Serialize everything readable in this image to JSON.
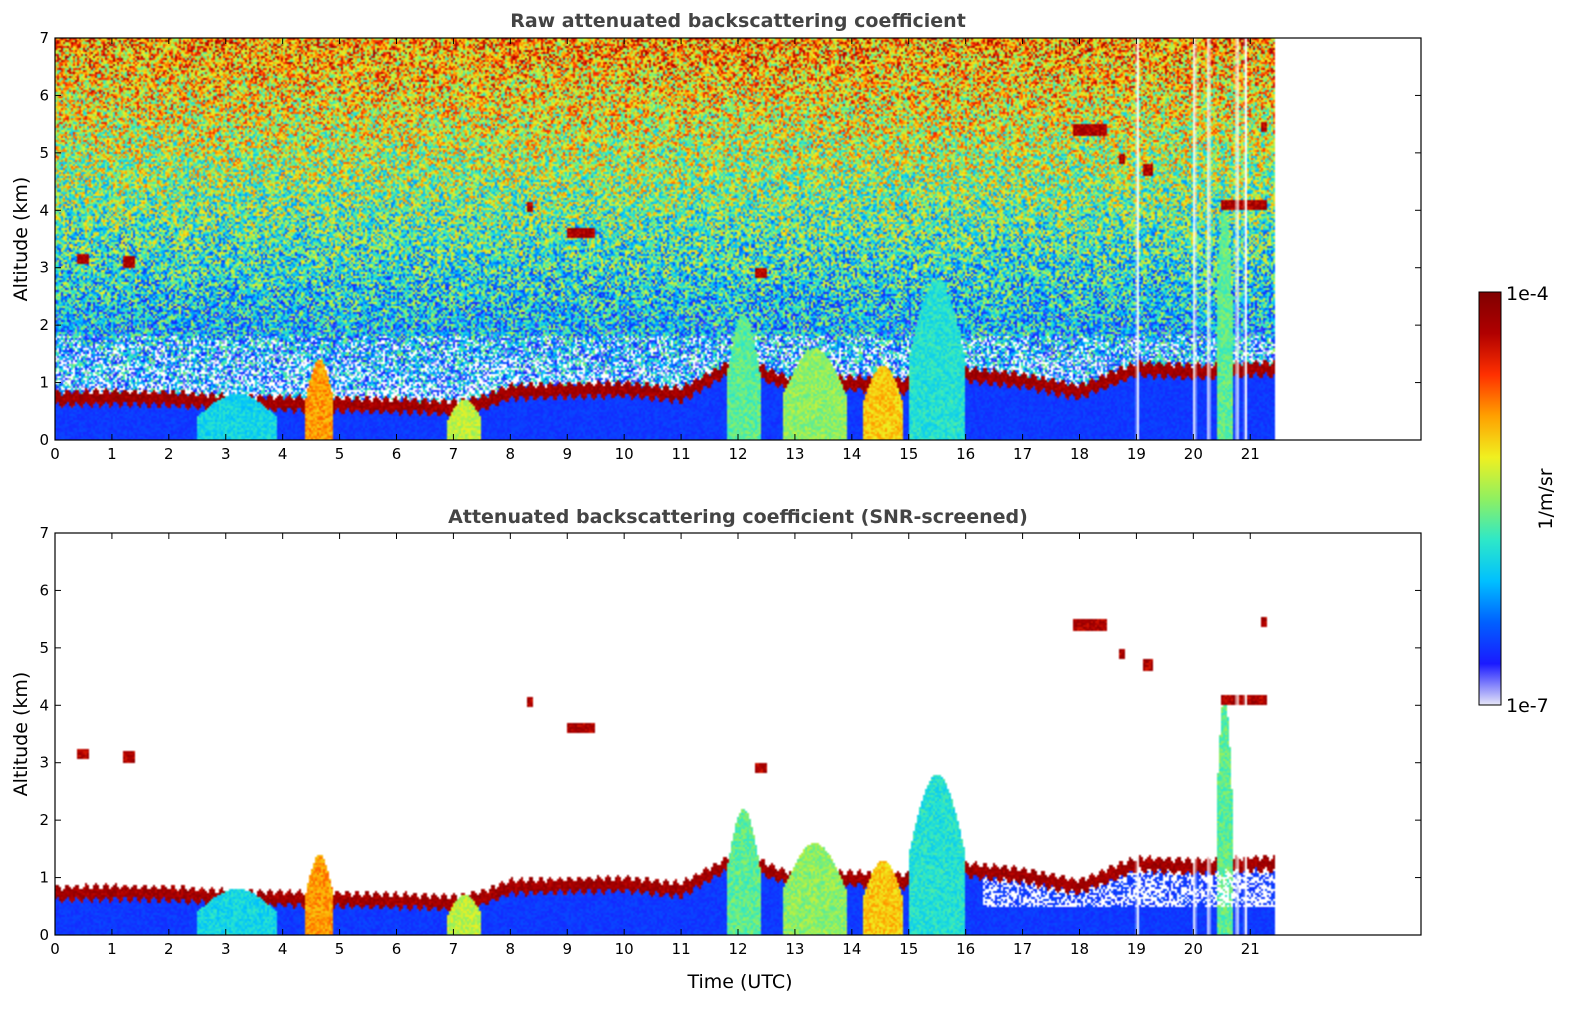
{
  "chart_data": [
    {
      "type": "heatmap",
      "title": "Raw attenuated backscattering coefficient",
      "xlabel": "",
      "ylabel": "Altitude (km)",
      "xlim": [
        0,
        24
      ],
      "ylim": [
        0,
        7
      ],
      "x_ticks": [
        "0",
        "1",
        "2",
        "3",
        "4",
        "5",
        "6",
        "7",
        "8",
        "9",
        "10",
        "11",
        "12",
        "13",
        "14",
        "15",
        "16",
        "17",
        "18",
        "19",
        "20",
        "21"
      ],
      "y_ticks": [
        "0",
        "1",
        "2",
        "3",
        "4",
        "5",
        "6",
        "7"
      ],
      "data_end_time": 21.45,
      "screened": false
    },
    {
      "type": "heatmap",
      "title": "Attenuated backscattering coefficient (SNR-screened)",
      "xlabel": "Time (UTC)",
      "ylabel": "Altitude (km)",
      "xlim": [
        0,
        24
      ],
      "ylim": [
        0,
        7
      ],
      "x_ticks": [
        "0",
        "1",
        "2",
        "3",
        "4",
        "5",
        "6",
        "7",
        "8",
        "9",
        "10",
        "11",
        "12",
        "13",
        "14",
        "15",
        "16",
        "17",
        "18",
        "19",
        "20",
        "21"
      ],
      "y_ticks": [
        "0",
        "1",
        "2",
        "3",
        "4",
        "5",
        "6",
        "7"
      ],
      "data_end_time": 21.45,
      "screened": true
    }
  ],
  "colorbar": {
    "label": "1/m/sr",
    "max_label": "1e-4",
    "min_label": "1e-7",
    "scale": "log",
    "colormap": "jet",
    "colors": [
      "#e6e6f8",
      "#1a1aff",
      "#0060ff",
      "#00c0ff",
      "#2ee8c8",
      "#90f060",
      "#f0f020",
      "#ffa000",
      "#ff3000",
      "#b00000",
      "#800000"
    ]
  },
  "features": {
    "boundary_layer_top_km": [
      [
        0,
        0.78
      ],
      [
        1,
        0.8
      ],
      [
        2,
        0.78
      ],
      [
        3,
        0.72
      ],
      [
        4,
        0.7
      ],
      [
        5,
        0.68
      ],
      [
        6,
        0.66
      ],
      [
        7,
        0.62
      ],
      [
        7.5,
        0.7
      ],
      [
        8,
        0.9
      ],
      [
        9,
        0.92
      ],
      [
        10,
        0.95
      ],
      [
        11,
        0.85
      ],
      [
        12,
        1.4
      ],
      [
        13,
        1.0
      ],
      [
        14,
        1.05
      ],
      [
        15,
        1.0
      ],
      [
        16,
        1.2
      ],
      [
        17,
        1.1
      ],
      [
        18,
        0.9
      ],
      [
        19,
        1.3
      ],
      [
        20,
        1.25
      ],
      [
        21,
        1.3
      ],
      [
        21.45,
        1.3
      ]
    ],
    "elevated_layers": [
      {
        "t0": 0.4,
        "t1": 0.6,
        "alt": 3.15
      },
      {
        "t0": 1.2,
        "t1": 1.4,
        "alt": 3.1
      },
      {
        "t0": 8.3,
        "t1": 8.4,
        "alt": 4.05
      },
      {
        "t0": 9.0,
        "t1": 9.5,
        "alt": 3.6
      },
      {
        "t0": 12.3,
        "t1": 12.5,
        "alt": 2.9
      },
      {
        "t0": 17.9,
        "t1": 18.5,
        "alt": 5.4
      },
      {
        "t0": 18.7,
        "t1": 18.8,
        "alt": 4.9
      },
      {
        "t0": 19.1,
        "t1": 19.3,
        "alt": 4.7
      },
      {
        "t0": 20.5,
        "t1": 21.3,
        "alt": 4.1
      },
      {
        "t0": 21.2,
        "t1": 21.3,
        "alt": 5.45
      }
    ],
    "plumes": [
      {
        "t0": 2.5,
        "t1": 3.9,
        "top": 0.8,
        "level": 0.35
      },
      {
        "t0": 4.4,
        "t1": 4.9,
        "top": 1.4,
        "level": 0.7
      },
      {
        "t0": 6.9,
        "t1": 7.5,
        "top": 0.7,
        "level": 0.55
      },
      {
        "t0": 11.8,
        "t1": 12.4,
        "top": 2.2,
        "level": 0.45
      },
      {
        "t0": 12.8,
        "t1": 13.9,
        "top": 1.6,
        "level": 0.5
      },
      {
        "t0": 14.2,
        "t1": 14.9,
        "top": 1.3,
        "level": 0.65
      },
      {
        "t0": 15.0,
        "t1": 16.0,
        "top": 2.8,
        "level": 0.38
      },
      {
        "t0": 20.4,
        "t1": 20.7,
        "top": 4.2,
        "level": 0.45
      }
    ]
  }
}
